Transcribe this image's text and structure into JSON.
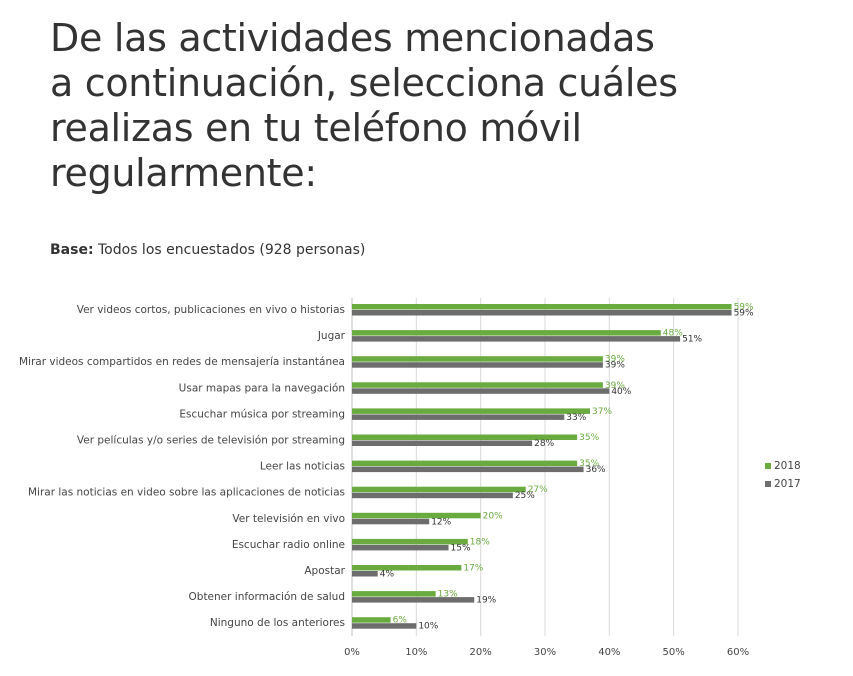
{
  "chart_data": {
    "type": "bar",
    "orientation": "horizontal",
    "title": [
      "De las actividades mencionadas",
      "a continuación, selecciona cuáles",
      "realizas en tu teléfono móvil",
      "regularmente:"
    ],
    "base_label": "Base:",
    "subtitle": "Todos los encuestados (928 personas)",
    "categories": [
      "Ver videos cortos, publicaciones en vivo o historias",
      "Jugar",
      "Mirar videos compartidos en redes de mensajería instantánea",
      "Usar mapas para la navegación",
      "Escuchar música por streaming",
      "Ver películas y/o series de televisión por streaming",
      "Leer las noticias",
      "Mirar las noticias en video sobre las aplicaciones de noticias",
      "Ver televisión en vivo",
      "Escuchar radio online",
      "Apostar",
      "Obtener información de salud",
      "Ninguno de los anteriores"
    ],
    "series": [
      {
        "name": "2018",
        "color": "#6aab3f",
        "values": [
          59,
          48,
          39,
          39,
          37,
          35,
          35,
          27,
          20,
          18,
          17,
          13,
          6
        ],
        "value_labels": [
          "59%",
          "48%",
          "39%",
          "39%",
          "37%",
          "35%",
          "35%",
          "27%",
          "20%",
          "18%",
          "17%",
          "13%",
          "6%"
        ]
      },
      {
        "name": "2017",
        "color": "#6d6d6d",
        "values": [
          59,
          51,
          39,
          40,
          33,
          28,
          36,
          25,
          12,
          15,
          4,
          19,
          10
        ],
        "value_labels": [
          "59%",
          "51%",
          "39%",
          "40%",
          "33%",
          "28%",
          "36%",
          "25%",
          "12%",
          "15%",
          "4%",
          "19%",
          "10%"
        ]
      }
    ],
    "xlim": [
      0,
      60
    ],
    "xticks": [
      {
        "value": 0,
        "label": "0%"
      },
      {
        "value": 10,
        "label": "10%"
      },
      {
        "value": 20,
        "label": "20%"
      },
      {
        "value": 30,
        "label": "30%"
      },
      {
        "value": 40,
        "label": "40%"
      },
      {
        "value": 50,
        "label": "50%"
      },
      {
        "value": 60,
        "label": "60%"
      }
    ],
    "grid": true,
    "legend": "right"
  }
}
